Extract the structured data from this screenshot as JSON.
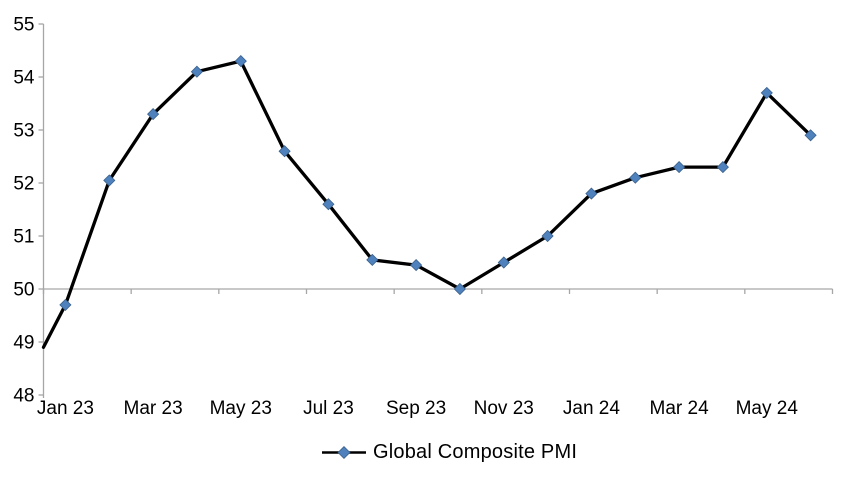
{
  "chart_data": {
    "type": "line",
    "title": "",
    "categories": [
      "Jan 23",
      "Feb 23",
      "Mar 23",
      "Apr 23",
      "May 23",
      "Jun 23",
      "Jul 23",
      "Aug 23",
      "Sep 23",
      "Oct 23",
      "Nov 23",
      "Dec 23",
      "Jan 24",
      "Feb 24",
      "Mar 24",
      "Apr 24",
      "May 24",
      "Jun 24"
    ],
    "series": [
      {
        "name": "Global Composite PMI",
        "values": [
          49.7,
          52.05,
          53.3,
          54.1,
          54.3,
          52.6,
          51.6,
          50.55,
          50.45,
          50.0,
          50.5,
          51.0,
          51.8,
          52.1,
          52.3,
          52.3,
          53.7,
          52.9
        ],
        "marker": "diamond"
      }
    ],
    "edge_entry_value": 48.9,
    "ylim": [
      48,
      55
    ],
    "ytick_step": 1,
    "ytick_labels": [
      "48",
      "49",
      "50",
      "51",
      "52",
      "53",
      "54",
      "55"
    ],
    "x_axis_labels_shown": [
      "Jan 23",
      "Mar 23",
      "May 23",
      "Jul 23",
      "Sep 23",
      "Nov 23",
      "Jan 24",
      "Mar 24",
      "May 24"
    ],
    "x_label_every_n_categories": 2,
    "category_axis_crosses_at": 50,
    "grid": "off",
    "legend_position": "bottom-center"
  },
  "legend": {
    "label": "Global Composite PMI"
  },
  "colors": {
    "background": "#FFFFFF",
    "axis_line": "#A6A6A6",
    "series_line": "#000000",
    "marker_fill": "#4F81BD",
    "marker_border": "#3A618C",
    "tick_text": "#000000"
  }
}
